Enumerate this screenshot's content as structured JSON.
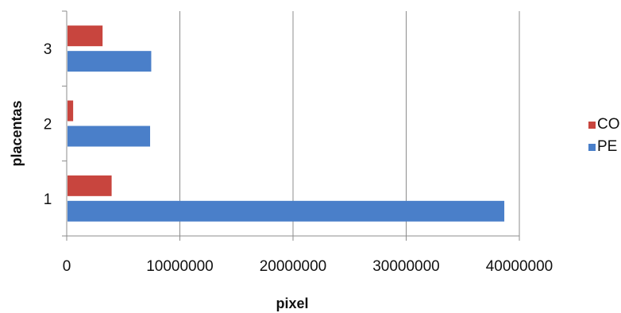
{
  "chart_data": {
    "type": "bar",
    "orientation": "horizontal",
    "categories": [
      "1",
      "2",
      "3"
    ],
    "series": [
      {
        "name": "PE",
        "values": [
          38600000,
          7300000,
          7400000
        ],
        "color": "#4a7fc9"
      },
      {
        "name": "CO",
        "values": [
          3900000,
          500000,
          3100000
        ],
        "color": "#c8453e"
      }
    ],
    "xlabel": "pixel",
    "ylabel": "placentas",
    "xlim": [
      0,
      40000000
    ],
    "xticks": [
      "0",
      "10000000",
      "20000000",
      "30000000",
      "40000000"
    ],
    "grid": "vertical",
    "legend": {
      "position": "right",
      "order": [
        "CO",
        "PE"
      ]
    }
  }
}
